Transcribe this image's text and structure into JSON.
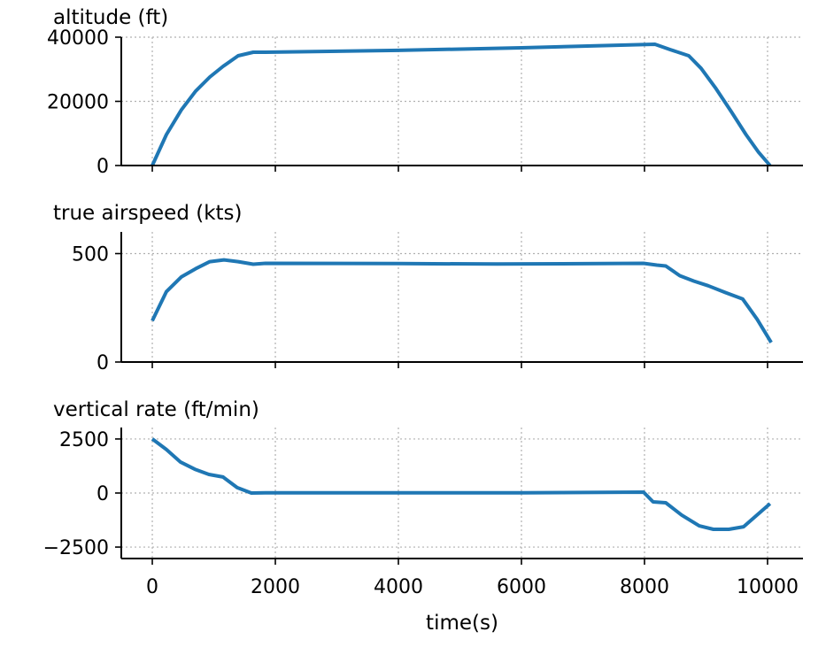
{
  "chart_data": [
    {
      "type": "line",
      "title": "altitude (ft)",
      "ylim": [
        0,
        40000
      ],
      "yticks": [
        0,
        20000,
        40000
      ],
      "ytick_labels": [
        "0",
        "20000",
        "40000"
      ],
      "x": [
        0,
        230,
        475,
        705,
        935,
        1150,
        1395,
        1640,
        1840,
        4000,
        6000,
        8170,
        8420,
        8720,
        8920,
        9150,
        9410,
        9650,
        9855,
        10040
      ],
      "values": [
        0,
        9650,
        17400,
        23200,
        27600,
        30900,
        34200,
        35300,
        35300,
        35900,
        36700,
        37800,
        36100,
        34200,
        30300,
        24300,
        16800,
        9650,
        4100,
        0
      ],
      "color": "#1f77b4",
      "grid": true
    },
    {
      "type": "line",
      "title": "true airspeed (kts)",
      "ylim": [
        0,
        600
      ],
      "yticks": [
        0,
        500
      ],
      "ytick_labels": [
        "0",
        "500"
      ],
      "x": [
        0,
        230,
        475,
        705,
        935,
        1165,
        1395,
        1640,
        1840,
        4000,
        5600,
        7985,
        8200,
        8345,
        8575,
        8805,
        9035,
        9320,
        9595,
        9830,
        10060
      ],
      "values": [
        190,
        325,
        393,
        430,
        463,
        471,
        463,
        451,
        455,
        454,
        452,
        455,
        447,
        443,
        398,
        373,
        352,
        320,
        291,
        197,
        90
      ],
      "color": "#1f77b4",
      "grid": true
    },
    {
      "type": "line",
      "title": "vertical rate (ft/min)",
      "ylim": [
        -3030,
        3030
      ],
      "yticks": [
        -2500,
        0,
        2500
      ],
      "ytick_labels": [
        "−2500",
        "0",
        "2500"
      ],
      "x": [
        0,
        230,
        460,
        690,
        920,
        1150,
        1380,
        1610,
        1840,
        4000,
        6000,
        7985,
        8140,
        8345,
        8605,
        8890,
        9120,
        9370,
        9610,
        10040
      ],
      "values": [
        2500,
        2010,
        1430,
        1100,
        860,
        740,
        250,
        0,
        10,
        10,
        10,
        40,
        -410,
        -450,
        -1020,
        -1520,
        -1680,
        -1680,
        -1560,
        -490
      ],
      "color": "#1f77b4",
      "grid": true
    }
  ],
  "x_axis": {
    "label": "time(s)",
    "xlim": [
      -504,
      10576
    ],
    "ticks": [
      0,
      2000,
      4000,
      6000,
      8000,
      10000
    ],
    "tick_labels": [
      "0",
      "2000",
      "4000",
      "6000",
      "8000",
      "10000"
    ]
  }
}
